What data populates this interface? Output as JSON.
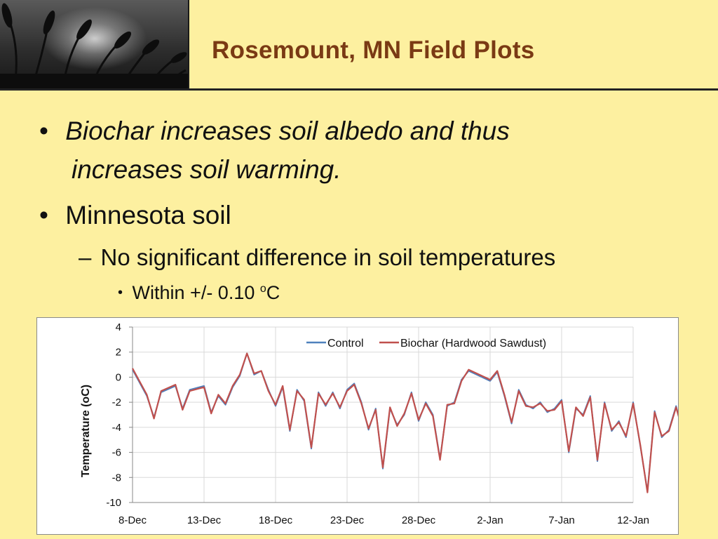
{
  "slide": {
    "title": "Rosemount, MN Field Plots",
    "bullets": {
      "b1_line1": "Biochar increases soil albedo and thus",
      "b1_line2": "increases soil warming.",
      "b2": "Minnesota soil",
      "b3": "No significant difference in soil temperatures",
      "b4_prefix": "Within +/- 0.10 ",
      "b4_sup": "o",
      "b4_unit": "C"
    },
    "bullet_marks": {
      "round": "•",
      "dash": "–"
    }
  },
  "colors": {
    "background": "#fdf0a0",
    "title": "#7a3a14",
    "control_series": "#4f81bd",
    "biochar_series": "#c0504d",
    "grid": "#d9d9d9"
  },
  "chart_data": {
    "type": "line",
    "title": "",
    "xlabel": "",
    "ylabel": "Temperature (oC)",
    "ylim": [
      -10,
      4
    ],
    "yticks": [
      "4",
      "2",
      "0",
      "-2",
      "-4",
      "-6",
      "-8",
      "-10"
    ],
    "xticks": [
      "8-Dec",
      "13-Dec",
      "18-Dec",
      "23-Dec",
      "28-Dec",
      "2-Jan",
      "7-Jan",
      "12-Jan"
    ],
    "grid": true,
    "legend": "top",
    "series": [
      {
        "name": "Control",
        "points": [
          [
            "8-Dec",
            0.6
          ],
          [
            "9-Dec",
            -1.5
          ],
          [
            "9.5-Dec",
            -3.2
          ],
          [
            "10-Dec",
            -1.2
          ],
          [
            "11-Dec",
            -0.7
          ],
          [
            "11.5-Dec",
            -2.5
          ],
          [
            "12-Dec",
            -1.0
          ],
          [
            "13-Dec",
            -0.7
          ],
          [
            "13.5-Dec",
            -2.8
          ],
          [
            "14-Dec",
            -1.5
          ],
          [
            "14.5-Dec",
            -2.2
          ],
          [
            "15-Dec",
            -0.8
          ],
          [
            "15.5-Dec",
            0.1
          ],
          [
            "16-Dec",
            1.9
          ],
          [
            "16.5-Dec",
            0.2
          ],
          [
            "17-Dec",
            0.5
          ],
          [
            "17.5-Dec",
            -1.0
          ],
          [
            "18-Dec",
            -2.3
          ],
          [
            "18.5-Dec",
            -0.8
          ],
          [
            "19-Dec",
            -4.3
          ],
          [
            "19.5-Dec",
            -1.0
          ],
          [
            "20-Dec",
            -1.9
          ],
          [
            "20.5-Dec",
            -5.7
          ],
          [
            "21-Dec",
            -1.2
          ],
          [
            "21.5-Dec",
            -2.3
          ],
          [
            "22-Dec",
            -1.2
          ],
          [
            "22.5-Dec",
            -2.5
          ],
          [
            "23-Dec",
            -1.0
          ],
          [
            "23.5-Dec",
            -0.5
          ],
          [
            "24-Dec",
            -2.0
          ],
          [
            "24.5-Dec",
            -4.2
          ],
          [
            "25-Dec",
            -2.5
          ],
          [
            "25.5-Dec",
            -7.3
          ],
          [
            "26-Dec",
            -2.5
          ],
          [
            "26.5-Dec",
            -3.8
          ],
          [
            "27-Dec",
            -3.0
          ],
          [
            "27.5-Dec",
            -1.2
          ],
          [
            "28-Dec",
            -3.5
          ],
          [
            "28.5-Dec",
            -2.0
          ],
          [
            "29-Dec",
            -3.0
          ],
          [
            "29.5-Dec",
            -6.5
          ],
          [
            "30-Dec",
            -2.3
          ],
          [
            "30.5-Dec",
            -2.0
          ],
          [
            "31-Dec",
            -0.2
          ],
          [
            "31.5-Dec",
            0.5
          ],
          [
            "1-Jan",
            -0.3
          ],
          [
            "1.5-Jan",
            0.4
          ],
          [
            "2-Jan",
            -1.5
          ],
          [
            "2.5-Jan",
            -3.7
          ],
          [
            "3-Jan",
            -1.0
          ],
          [
            "3.5-Jan",
            -2.2
          ],
          [
            "4-Jan",
            -2.5
          ],
          [
            "4.5-Jan",
            -2.0
          ],
          [
            "5-Jan",
            -2.8
          ],
          [
            "5.5-Jan",
            -2.5
          ],
          [
            "6-Jan",
            -1.8
          ],
          [
            "6.5-Jan",
            -6.0
          ],
          [
            "7-Jan",
            -2.5
          ],
          [
            "7.5-Jan",
            -3.0
          ],
          [
            "8-Jan",
            -1.5
          ],
          [
            "8.5-Jan",
            -6.7
          ],
          [
            "9-Jan",
            -2.0
          ],
          [
            "9.5-Jan",
            -4.3
          ],
          [
            "10-Jan",
            -3.5
          ],
          [
            "10.5-Jan",
            -4.8
          ],
          [
            "11-Jan",
            -2.0
          ],
          [
            "11.5-Jan",
            -5.5
          ],
          [
            "12-Jan",
            -9.1
          ],
          [
            "12.5-Jan",
            -2.7
          ],
          [
            "13-Jan",
            -4.8
          ],
          [
            "13.5-Jan",
            -4.2
          ],
          [
            "14-Jan",
            -2.3
          ],
          [
            "14.5-Jan",
            -4.5
          ],
          [
            "15-Jan",
            -5.7
          ],
          [
            "15.5-Jan",
            -4.2
          ]
        ]
      },
      {
        "name": "Biochar (Hardwood Sawdust)",
        "points": [
          [
            "8-Dec",
            0.7
          ],
          [
            "9-Dec",
            -1.4
          ],
          [
            "9.5-Dec",
            -3.3
          ],
          [
            "10-Dec",
            -1.1
          ],
          [
            "11-Dec",
            -0.6
          ],
          [
            "11.5-Dec",
            -2.6
          ],
          [
            "12-Dec",
            -1.1
          ],
          [
            "13-Dec",
            -0.8
          ],
          [
            "13.5-Dec",
            -2.9
          ],
          [
            "14-Dec",
            -1.4
          ],
          [
            "14.5-Dec",
            -2.1
          ],
          [
            "15-Dec",
            -0.7
          ],
          [
            "15.5-Dec",
            0.2
          ],
          [
            "16-Dec",
            1.9
          ],
          [
            "16.5-Dec",
            0.3
          ],
          [
            "17-Dec",
            0.5
          ],
          [
            "17.5-Dec",
            -1.1
          ],
          [
            "18-Dec",
            -2.2
          ],
          [
            "18.5-Dec",
            -0.7
          ],
          [
            "19-Dec",
            -4.2
          ],
          [
            "19.5-Dec",
            -1.1
          ],
          [
            "20-Dec",
            -1.8
          ],
          [
            "20.5-Dec",
            -5.6
          ],
          [
            "21-Dec",
            -1.3
          ],
          [
            "21.5-Dec",
            -2.2
          ],
          [
            "22-Dec",
            -1.3
          ],
          [
            "22.5-Dec",
            -2.4
          ],
          [
            "23-Dec",
            -1.1
          ],
          [
            "23.5-Dec",
            -0.6
          ],
          [
            "24-Dec",
            -2.1
          ],
          [
            "24.5-Dec",
            -4.1
          ],
          [
            "25-Dec",
            -2.6
          ],
          [
            "25.5-Dec",
            -7.2
          ],
          [
            "26-Dec",
            -2.4
          ],
          [
            "26.5-Dec",
            -3.9
          ],
          [
            "27-Dec",
            -2.9
          ],
          [
            "27.5-Dec",
            -1.3
          ],
          [
            "28-Dec",
            -3.4
          ],
          [
            "28.5-Dec",
            -2.1
          ],
          [
            "29-Dec",
            -3.1
          ],
          [
            "29.5-Dec",
            -6.6
          ],
          [
            "30-Dec",
            -2.2
          ],
          [
            "30.5-Dec",
            -2.1
          ],
          [
            "31-Dec",
            -0.3
          ],
          [
            "31.5-Dec",
            0.6
          ],
          [
            "1-Jan",
            -0.2
          ],
          [
            "1.5-Jan",
            0.5
          ],
          [
            "2-Jan",
            -1.4
          ],
          [
            "2.5-Jan",
            -3.6
          ],
          [
            "3-Jan",
            -1.1
          ],
          [
            "3.5-Jan",
            -2.3
          ],
          [
            "4-Jan",
            -2.4
          ],
          [
            "4.5-Jan",
            -2.1
          ],
          [
            "5-Jan",
            -2.7
          ],
          [
            "5.5-Jan",
            -2.6
          ],
          [
            "6-Jan",
            -1.9
          ],
          [
            "6.5-Jan",
            -5.9
          ],
          [
            "7-Jan",
            -2.4
          ],
          [
            "7.5-Jan",
            -3.1
          ],
          [
            "8-Jan",
            -1.6
          ],
          [
            "8.5-Jan",
            -6.6
          ],
          [
            "9-Jan",
            -2.1
          ],
          [
            "9.5-Jan",
            -4.2
          ],
          [
            "10-Jan",
            -3.6
          ],
          [
            "10.5-Jan",
            -4.7
          ],
          [
            "11-Jan",
            -2.1
          ],
          [
            "11.5-Jan",
            -5.4
          ],
          [
            "12-Jan",
            -9.2
          ],
          [
            "12.5-Jan",
            -2.8
          ],
          [
            "13-Jan",
            -4.7
          ],
          [
            "13.5-Jan",
            -4.3
          ],
          [
            "14-Jan",
            -2.4
          ],
          [
            "14.5-Jan",
            -4.4
          ],
          [
            "15-Jan",
            -5.8
          ],
          [
            "15.5-Jan",
            -4.1
          ]
        ]
      }
    ]
  }
}
